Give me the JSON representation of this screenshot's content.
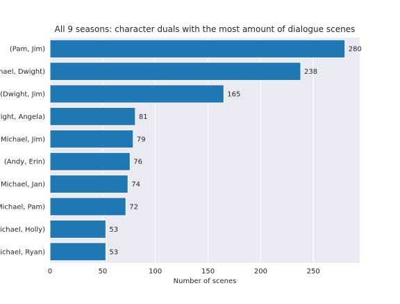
{
  "chart_data": {
    "type": "bar",
    "orientation": "horizontal",
    "title": "All 9 seasons: character duals with the most amount of dialogue scenes",
    "xlabel": "Number of scenes",
    "ylabel": "",
    "categories": [
      "(Pam, Jim)",
      "(Michael, Dwight)",
      "(Dwight, Jim)",
      "(Dwight, Angela)",
      "(Michael, Jim)",
      "(Andy, Erin)",
      "(Michael, Jan)",
      "(Michael, Pam)",
      "(Michael, Holly)",
      "(Michael, Ryan)"
    ],
    "values": [
      280,
      238,
      165,
      81,
      79,
      76,
      74,
      72,
      53,
      53
    ],
    "xlim": [
      0,
      294
    ],
    "xticks": [
      0,
      50,
      100,
      150,
      200,
      250
    ],
    "grid": true,
    "legend": "none",
    "colors": {
      "bar": "#1f77b4",
      "plot_background": "#eaeaf2",
      "gridline": "#ffffff",
      "text": "#262626"
    }
  }
}
